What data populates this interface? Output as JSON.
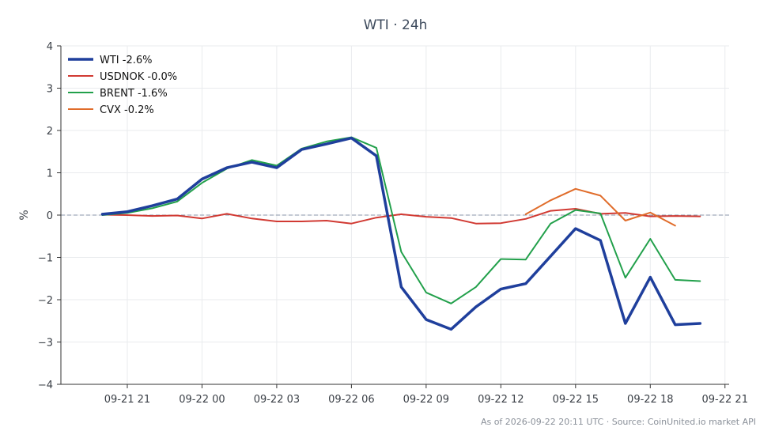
{
  "chart_data": {
    "type": "line",
    "title": "WTI · 24h",
    "xlabel": "",
    "ylabel": "%",
    "ylim": [
      -4,
      4
    ],
    "yticks": [
      4,
      3,
      2,
      1,
      0,
      -1,
      -2,
      -3,
      -4
    ],
    "ytick_labels": [
      "4",
      "3",
      "2",
      "1",
      "0",
      "−1",
      "−2",
      "−3",
      "−4"
    ],
    "xlim": [
      "2026-09-21 18:20",
      "2026-09-22 21:10"
    ],
    "xticks": [
      "2026-09-21 21:00",
      "2026-09-22 00:00",
      "2026-09-22 03:00",
      "2026-09-22 06:00",
      "2026-09-22 09:00",
      "2026-09-22 12:00",
      "2026-09-22 15:00",
      "2026-09-22 18:00",
      "2026-09-22 21:00"
    ],
    "xtick_labels": [
      "09-21 21",
      "09-22 00",
      "09-22 03",
      "09-22 06",
      "09-22 09",
      "09-22 12",
      "09-22 15",
      "09-22 18",
      "09-22 21"
    ],
    "grid": true,
    "zero_line": true,
    "legend_position": "top-left",
    "series": [
      {
        "name": "WTI -2.6%",
        "color": "#1f3f9c",
        "x": [
          "2026-09-21 20:00",
          "2026-09-21 21:00",
          "2026-09-21 22:00",
          "2026-09-21 23:00",
          "2026-09-22 00:00",
          "2026-09-22 01:00",
          "2026-09-22 02:00",
          "2026-09-22 03:00",
          "2026-09-22 04:00",
          "2026-09-22 05:00",
          "2026-09-22 06:00",
          "2026-09-22 07:00",
          "2026-09-22 08:00",
          "2026-09-22 09:00",
          "2026-09-22 10:00",
          "2026-09-22 11:00",
          "2026-09-22 12:00",
          "2026-09-22 13:00",
          "2026-09-22 14:00",
          "2026-09-22 15:00",
          "2026-09-22 16:00",
          "2026-09-22 17:00",
          "2026-09-22 18:00",
          "2026-09-22 19:00",
          "2026-09-22 20:00"
        ],
        "values": [
          0.02,
          0.08,
          0.22,
          0.38,
          0.85,
          1.12,
          1.25,
          1.12,
          1.55,
          1.68,
          1.82,
          1.4,
          -1.7,
          -2.47,
          -2.7,
          -2.17,
          -1.75,
          -1.62,
          -0.97,
          -0.32,
          -0.6,
          -2.56,
          -1.47,
          -2.59,
          -2.56
        ]
      },
      {
        "name": "USDNOK -0.0%",
        "color": "#d13a33",
        "x": [
          "2026-09-21 20:00",
          "2026-09-21 21:00",
          "2026-09-21 22:00",
          "2026-09-21 23:00",
          "2026-09-22 00:00",
          "2026-09-22 01:00",
          "2026-09-22 02:00",
          "2026-09-22 03:00",
          "2026-09-22 04:00",
          "2026-09-22 05:00",
          "2026-09-22 06:00",
          "2026-09-22 07:00",
          "2026-09-22 08:00",
          "2026-09-22 09:00",
          "2026-09-22 10:00",
          "2026-09-22 11:00",
          "2026-09-22 12:00",
          "2026-09-22 13:00",
          "2026-09-22 14:00",
          "2026-09-22 15:00",
          "2026-09-22 16:00",
          "2026-09-22 17:00",
          "2026-09-22 18:00",
          "2026-09-22 19:00",
          "2026-09-22 20:00"
        ],
        "values": [
          0.01,
          0.0,
          -0.02,
          -0.01,
          -0.08,
          0.03,
          -0.08,
          -0.15,
          -0.15,
          -0.13,
          -0.2,
          -0.06,
          0.02,
          -0.04,
          -0.07,
          -0.2,
          -0.19,
          -0.09,
          0.1,
          0.15,
          0.03,
          0.05,
          -0.03,
          -0.02,
          -0.03
        ]
      },
      {
        "name": "BRENT -1.6%",
        "color": "#22a04b",
        "x": [
          "2026-09-21 20:00",
          "2026-09-21 21:00",
          "2026-09-21 22:00",
          "2026-09-21 23:00",
          "2026-09-22 00:00",
          "2026-09-22 01:00",
          "2026-09-22 02:00",
          "2026-09-22 03:00",
          "2026-09-22 04:00",
          "2026-09-22 05:00",
          "2026-09-22 06:00",
          "2026-09-22 07:00",
          "2026-09-22 08:00",
          "2026-09-22 09:00",
          "2026-09-22 10:00",
          "2026-09-22 11:00",
          "2026-09-22 12:00",
          "2026-09-22 13:00",
          "2026-09-22 14:00",
          "2026-09-22 15:00",
          "2026-09-22 16:00",
          "2026-09-22 17:00",
          "2026-09-22 18:00",
          "2026-09-22 19:00",
          "2026-09-22 20:00"
        ],
        "values": [
          0.0,
          0.05,
          0.16,
          0.32,
          0.76,
          1.1,
          1.3,
          1.17,
          1.57,
          1.74,
          1.84,
          1.59,
          -0.87,
          -1.83,
          -2.09,
          -1.7,
          -1.04,
          -1.05,
          -0.2,
          0.12,
          0.04,
          -1.48,
          -0.56,
          -1.53,
          -1.56
        ]
      },
      {
        "name": "CVX -0.2%",
        "color": "#e06c2a",
        "x": [
          "2026-09-22 13:00",
          "2026-09-22 14:00",
          "2026-09-22 15:00",
          "2026-09-22 16:00",
          "2026-09-22 17:00",
          "2026-09-22 18:00",
          "2026-09-22 19:00"
        ],
        "values": [
          0.02,
          0.35,
          0.62,
          0.46,
          -0.13,
          0.06,
          -0.25
        ]
      }
    ]
  },
  "footer": "As of 2026-09-22 20:11 UTC · Source: CoinUnited.io market API"
}
